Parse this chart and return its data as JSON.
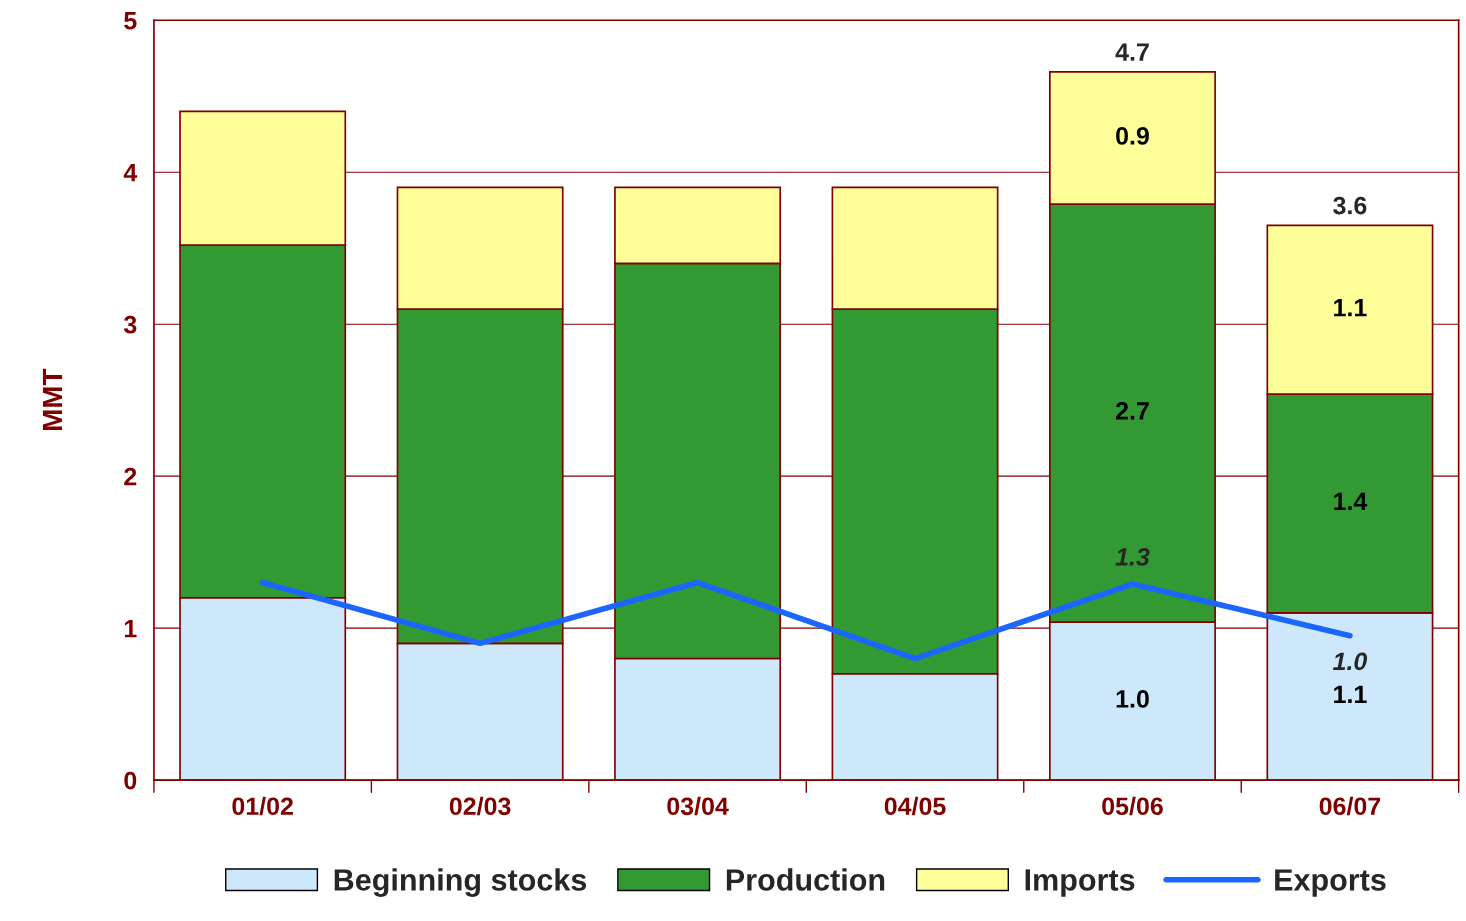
{
  "chart_data": {
    "type": "bar",
    "stacked": true,
    "ylabel": "MMT",
    "categories": [
      "01/02",
      "02/03",
      "03/04",
      "04/05",
      "05/06",
      "06/07"
    ],
    "series": [
      {
        "name": "Beginning stocks",
        "color": "#cce8fa",
        "values": [
          1.2,
          0.9,
          0.8,
          0.7,
          1.04,
          1.1
        ],
        "value_labels": [
          null,
          null,
          null,
          null,
          "1.0",
          "1.1"
        ]
      },
      {
        "name": "Production",
        "color": "#339933",
        "values": [
          2.32,
          2.2,
          2.6,
          2.4,
          2.75,
          1.44
        ],
        "value_labels": [
          null,
          null,
          null,
          null,
          "2.7",
          "1.4"
        ]
      },
      {
        "name": "Imports",
        "color": "#ffff99",
        "values": [
          0.88,
          0.8,
          0.5,
          0.8,
          0.87,
          1.11
        ],
        "value_labels": [
          null,
          null,
          null,
          null,
          "0.9",
          "1.1"
        ]
      },
      {
        "name": "Exports",
        "type": "line",
        "color": "#1a66ff",
        "values": [
          1.3,
          0.9,
          1.3,
          0.8,
          1.29,
          0.95
        ],
        "value_labels": [
          null,
          null,
          null,
          null,
          "1.3",
          "1.0"
        ]
      }
    ],
    "totals": [
      null,
      null,
      null,
      null,
      "4.7",
      "3.6"
    ],
    "ylim": [
      0,
      5
    ],
    "yticks": [
      0,
      1,
      2,
      3,
      4,
      5
    ],
    "grid": "y",
    "legend": "bottom"
  }
}
